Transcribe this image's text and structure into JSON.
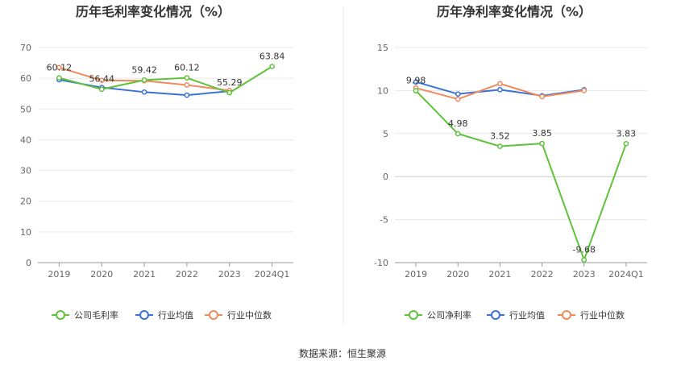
{
  "source_text": "数据来源：恒生聚源",
  "colors": {
    "company": "#5fc23a",
    "avg": "#3a72d8",
    "median": "#f08a5d"
  },
  "chart_data": [
    {
      "type": "line",
      "title": "历年毛利率变化情况（%）",
      "categories": [
        "2019",
        "2020",
        "2021",
        "2022",
        "2023",
        "2024Q1"
      ],
      "ylim": [
        0,
        70
      ],
      "yticks": [
        "0",
        "10",
        "20",
        "30",
        "40",
        "50",
        "60",
        "70"
      ],
      "grid": true,
      "legend": "bottom",
      "series": [
        {
          "name": "公司毛利率",
          "key": "company",
          "values": [
            60.12,
            56.44,
            59.42,
            60.12,
            55.29,
            63.84
          ],
          "labels": [
            "60.12",
            "56.44",
            "59.42",
            "60.12",
            "55.29",
            "63.84"
          ]
        },
        {
          "name": "行业均值",
          "key": "avg",
          "values": [
            59.5,
            57.0,
            55.5,
            54.5,
            55.8,
            null
          ]
        },
        {
          "name": "行业中位数",
          "key": "median",
          "values": [
            63.5,
            59.3,
            59.2,
            57.8,
            56.0,
            null
          ]
        }
      ]
    },
    {
      "type": "line",
      "title": "历年净利率变化情况（%）",
      "categories": [
        "2019",
        "2020",
        "2021",
        "2022",
        "2023",
        "2024Q1"
      ],
      "ylim": [
        -10,
        15
      ],
      "yticks": [
        "-10",
        "-5",
        "0",
        "5",
        "10",
        "15"
      ],
      "grid": true,
      "legend": "bottom",
      "series": [
        {
          "name": "公司净利率",
          "key": "company",
          "values": [
            9.98,
            4.98,
            3.52,
            3.85,
            -9.68,
            3.83
          ],
          "labels": [
            "9.98",
            "4.98",
            "3.52",
            "3.85",
            "-9.68",
            "3.83"
          ]
        },
        {
          "name": "行业均值",
          "key": "avg",
          "values": [
            11.0,
            9.6,
            10.1,
            9.4,
            10.1,
            null
          ]
        },
        {
          "name": "行业中位数",
          "key": "median",
          "values": [
            10.3,
            9.0,
            10.8,
            9.3,
            10.0,
            null
          ]
        }
      ]
    }
  ]
}
